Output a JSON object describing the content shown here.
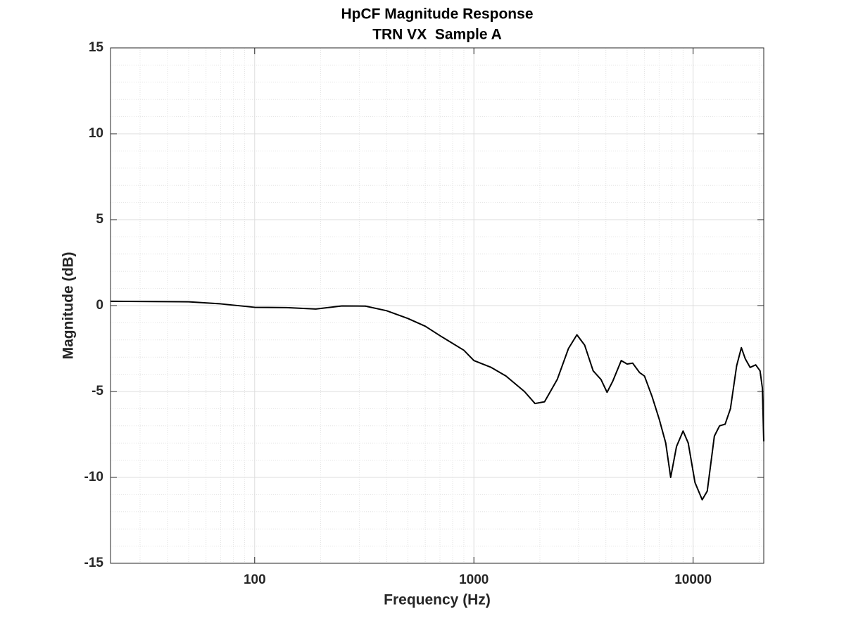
{
  "chart_data": {
    "type": "line",
    "title": "HpCF Magnitude Response",
    "subtitle": "TRN VX  Sample A",
    "x_label": "Frequency (Hz)",
    "y_label": "Magnitude (dB)",
    "x_log": true,
    "grid": true,
    "minor_grid": true,
    "xlim": [
      22,
      21000
    ],
    "ylim": [
      -15,
      15
    ],
    "xticks": [
      100,
      1000,
      10000
    ],
    "yticks": [
      -15,
      -10,
      -5,
      0,
      5,
      10,
      15
    ],
    "x": [
      22,
      50,
      70,
      100,
      140,
      190,
      250,
      320,
      400,
      500,
      600,
      700,
      900,
      1000,
      1200,
      1400,
      1700,
      1900,
      2100,
      2400,
      2700,
      2950,
      3200,
      3500,
      3800,
      4050,
      4300,
      4700,
      5000,
      5300,
      5700,
      6000,
      6500,
      7000,
      7500,
      7900,
      8400,
      9000,
      9500,
      10200,
      11000,
      11600,
      12500,
      13200,
      14000,
      14800,
      15800,
      16600,
      17300,
      18200,
      19300,
      20200,
      20700,
      21000
    ],
    "series": [
      {
        "color": "#000000",
        "values": [
          0.25,
          0.22,
          0.1,
          -0.1,
          -0.12,
          -0.2,
          -0.02,
          -0.03,
          -0.3,
          -0.75,
          -1.2,
          -1.75,
          -2.6,
          -3.2,
          -3.6,
          -4.1,
          -5.0,
          -5.7,
          -5.6,
          -4.3,
          -2.5,
          -1.7,
          -2.3,
          -3.8,
          -4.3,
          -5.05,
          -4.4,
          -3.2,
          -3.4,
          -3.35,
          -3.9,
          -4.1,
          -5.3,
          -6.6,
          -8.0,
          -10.0,
          -8.2,
          -7.3,
          -8.0,
          -10.3,
          -11.3,
          -10.8,
          -7.6,
          -7.0,
          -6.9,
          -6.0,
          -3.5,
          -2.45,
          -3.1,
          -3.6,
          -3.45,
          -3.8,
          -4.8,
          -7.9
        ]
      }
    ]
  }
}
